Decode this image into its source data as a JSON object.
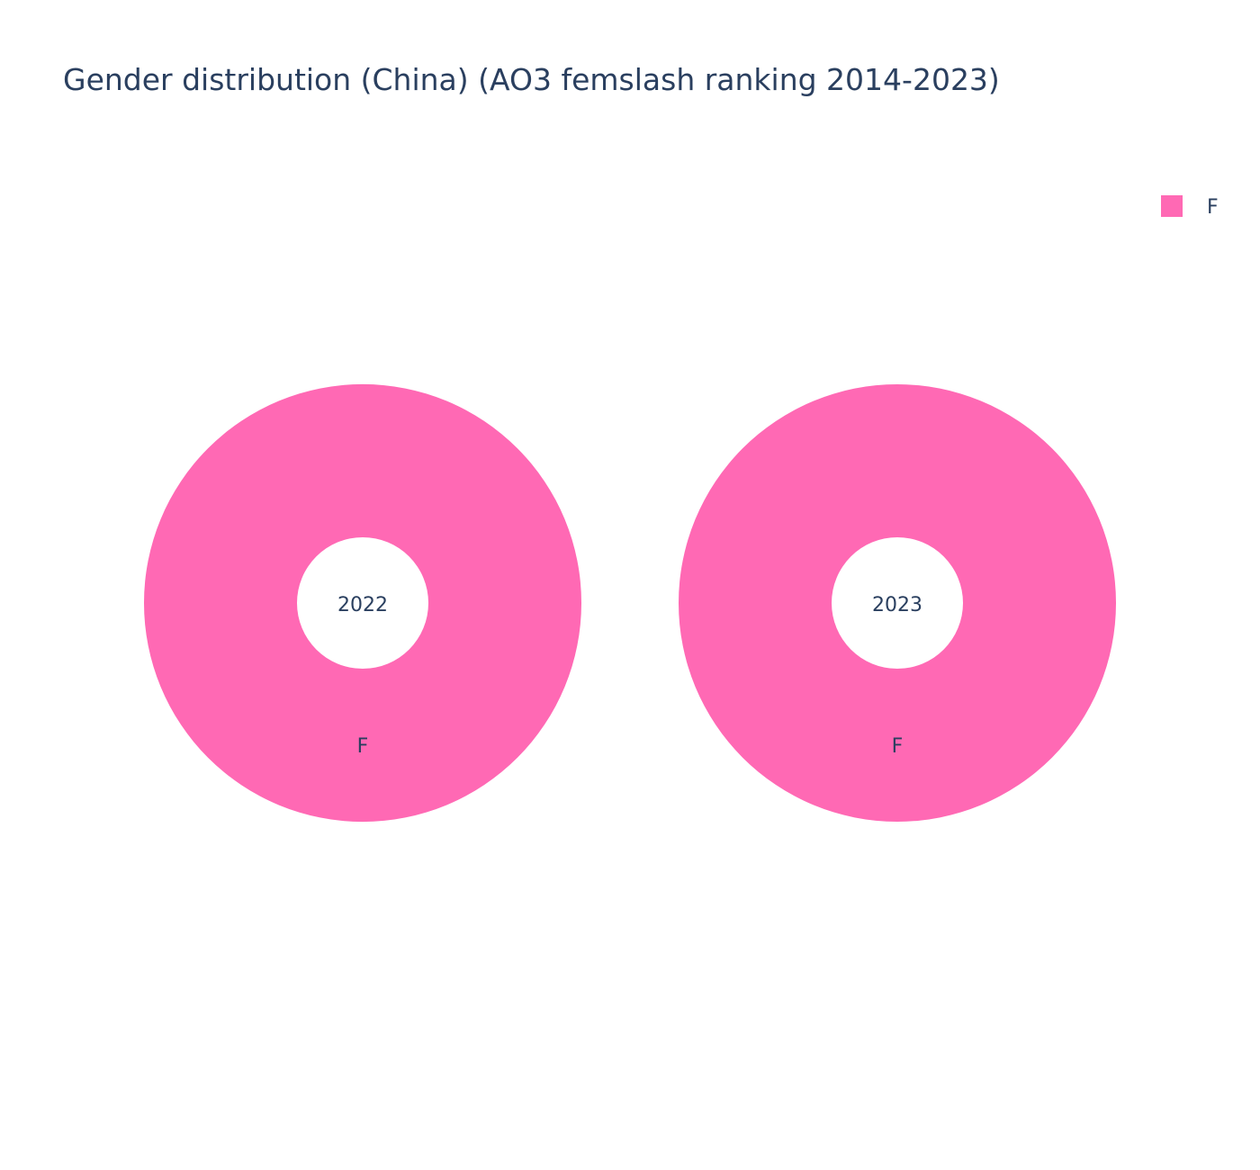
{
  "chart_data": [
    {
      "type": "pie",
      "hole": true,
      "center_label": "2022",
      "slices": [
        {
          "label": "F",
          "value": 100,
          "color": "#ff69b4"
        }
      ]
    },
    {
      "type": "pie",
      "hole": true,
      "center_label": "2023",
      "slices": [
        {
          "label": "F",
          "value": 100,
          "color": "#ff69b4"
        }
      ]
    }
  ],
  "title": "Gender distribution (China) (AO3 femslash ranking 2014-2023)",
  "legend": {
    "placement": "top-right",
    "items": [
      {
        "label": "F",
        "color": "#ff69b4"
      }
    ]
  }
}
